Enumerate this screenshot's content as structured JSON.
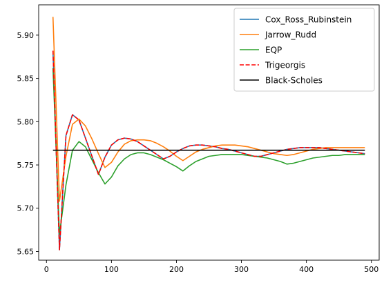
{
  "chart_data": {
    "type": "line",
    "xlim": [
      -12,
      512
    ],
    "ylim": [
      5.64,
      5.935
    ],
    "x_ticks": [
      {
        "value": 0,
        "label": "0"
      },
      {
        "value": 100,
        "label": "100"
      },
      {
        "value": 200,
        "label": "200"
      },
      {
        "value": 300,
        "label": "300"
      },
      {
        "value": 400,
        "label": "400"
      },
      {
        "value": 500,
        "label": "500"
      }
    ],
    "y_ticks": [
      {
        "value": 5.65,
        "label": "5.65"
      },
      {
        "value": 5.7,
        "label": "5.70"
      },
      {
        "value": 5.75,
        "label": "5.75"
      },
      {
        "value": 5.8,
        "label": "5.80"
      },
      {
        "value": 5.85,
        "label": "5.85"
      },
      {
        "value": 5.9,
        "label": "5.90"
      }
    ],
    "grid": false,
    "legend_position": "top-right",
    "series": [
      {
        "name": "Cox_Ross_Rubinstein",
        "color": "#1f77b4",
        "dash": "solid",
        "x": [
          10,
          20,
          30,
          40,
          50,
          60,
          70,
          80,
          90,
          100,
          110,
          120,
          130,
          140,
          150,
          160,
          170,
          180,
          190,
          200,
          210,
          220,
          230,
          240,
          250,
          260,
          270,
          280,
          290,
          300,
          310,
          320,
          330,
          340,
          350,
          360,
          370,
          380,
          390,
          400,
          410,
          420,
          430,
          440,
          450,
          460,
          470,
          480,
          490
        ],
        "y": [
          5.882,
          5.652,
          5.784,
          5.808,
          5.802,
          5.781,
          5.76,
          5.739,
          5.759,
          5.773,
          5.779,
          5.781,
          5.78,
          5.777,
          5.772,
          5.767,
          5.762,
          5.757,
          5.76,
          5.765,
          5.769,
          5.772,
          5.773,
          5.773,
          5.772,
          5.771,
          5.769,
          5.768,
          5.766,
          5.764,
          5.762,
          5.76,
          5.76,
          5.762,
          5.764,
          5.766,
          5.768,
          5.769,
          5.77,
          5.77,
          5.77,
          5.77,
          5.769,
          5.768,
          5.767,
          5.766,
          5.765,
          5.764,
          5.763
        ]
      },
      {
        "name": "Jarrow_Rudd",
        "color": "#ff7f0e",
        "dash": "solid",
        "x": [
          10,
          20,
          30,
          40,
          50,
          60,
          70,
          80,
          90,
          100,
          110,
          120,
          130,
          140,
          150,
          160,
          170,
          180,
          190,
          200,
          210,
          220,
          230,
          240,
          250,
          260,
          270,
          280,
          290,
          300,
          310,
          320,
          330,
          340,
          350,
          360,
          370,
          380,
          390,
          400,
          410,
          420,
          430,
          440,
          450,
          460,
          470,
          480,
          490
        ],
        "y": [
          5.921,
          5.708,
          5.76,
          5.797,
          5.803,
          5.795,
          5.78,
          5.763,
          5.747,
          5.753,
          5.765,
          5.774,
          5.778,
          5.779,
          5.779,
          5.778,
          5.775,
          5.771,
          5.766,
          5.76,
          5.755,
          5.76,
          5.765,
          5.768,
          5.77,
          5.772,
          5.773,
          5.773,
          5.773,
          5.772,
          5.771,
          5.769,
          5.767,
          5.765,
          5.763,
          5.762,
          5.761,
          5.762,
          5.764,
          5.766,
          5.768,
          5.769,
          5.77,
          5.77,
          5.77,
          5.77,
          5.77,
          5.77,
          5.77
        ]
      },
      {
        "name": "EQP",
        "color": "#2ca02c",
        "dash": "solid",
        "x": [
          10,
          20,
          30,
          40,
          50,
          60,
          70,
          80,
          90,
          100,
          110,
          120,
          130,
          140,
          150,
          160,
          170,
          180,
          190,
          200,
          210,
          220,
          230,
          240,
          250,
          260,
          270,
          280,
          290,
          300,
          310,
          320,
          330,
          340,
          350,
          360,
          370,
          380,
          390,
          400,
          410,
          420,
          430,
          440,
          450,
          460,
          470,
          480,
          490
        ],
        "y": [
          5.862,
          5.67,
          5.727,
          5.767,
          5.777,
          5.771,
          5.756,
          5.741,
          5.728,
          5.736,
          5.749,
          5.757,
          5.762,
          5.764,
          5.764,
          5.762,
          5.759,
          5.756,
          5.752,
          5.748,
          5.743,
          5.749,
          5.754,
          5.757,
          5.76,
          5.761,
          5.762,
          5.762,
          5.762,
          5.762,
          5.761,
          5.76,
          5.759,
          5.758,
          5.756,
          5.754,
          5.751,
          5.752,
          5.754,
          5.756,
          5.758,
          5.759,
          5.76,
          5.761,
          5.761,
          5.762,
          5.762,
          5.762,
          5.762
        ]
      },
      {
        "name": "Trigeorgis",
        "color": "#ff0000",
        "dash": "dashed",
        "x": [
          10,
          20,
          30,
          40,
          50,
          60,
          70,
          80,
          90,
          100,
          110,
          120,
          130,
          140,
          150,
          160,
          170,
          180,
          190,
          200,
          210,
          220,
          230,
          240,
          250,
          260,
          270,
          280,
          290,
          300,
          310,
          320,
          330,
          340,
          350,
          360,
          370,
          380,
          390,
          400,
          410,
          420,
          430,
          440,
          450,
          460,
          470,
          480,
          490
        ],
        "y": [
          5.882,
          5.652,
          5.784,
          5.808,
          5.802,
          5.781,
          5.76,
          5.739,
          5.759,
          5.773,
          5.779,
          5.781,
          5.78,
          5.777,
          5.772,
          5.767,
          5.762,
          5.757,
          5.76,
          5.765,
          5.769,
          5.772,
          5.773,
          5.773,
          5.772,
          5.771,
          5.769,
          5.768,
          5.766,
          5.764,
          5.762,
          5.76,
          5.76,
          5.762,
          5.764,
          5.766,
          5.768,
          5.769,
          5.77,
          5.77,
          5.77,
          5.77,
          5.769,
          5.768,
          5.767,
          5.766,
          5.765,
          5.764,
          5.763
        ]
      },
      {
        "name": "Black-Scholes",
        "color": "#000000",
        "dash": "solid",
        "x": [
          10,
          490
        ],
        "y": [
          5.767,
          5.767
        ]
      }
    ]
  }
}
